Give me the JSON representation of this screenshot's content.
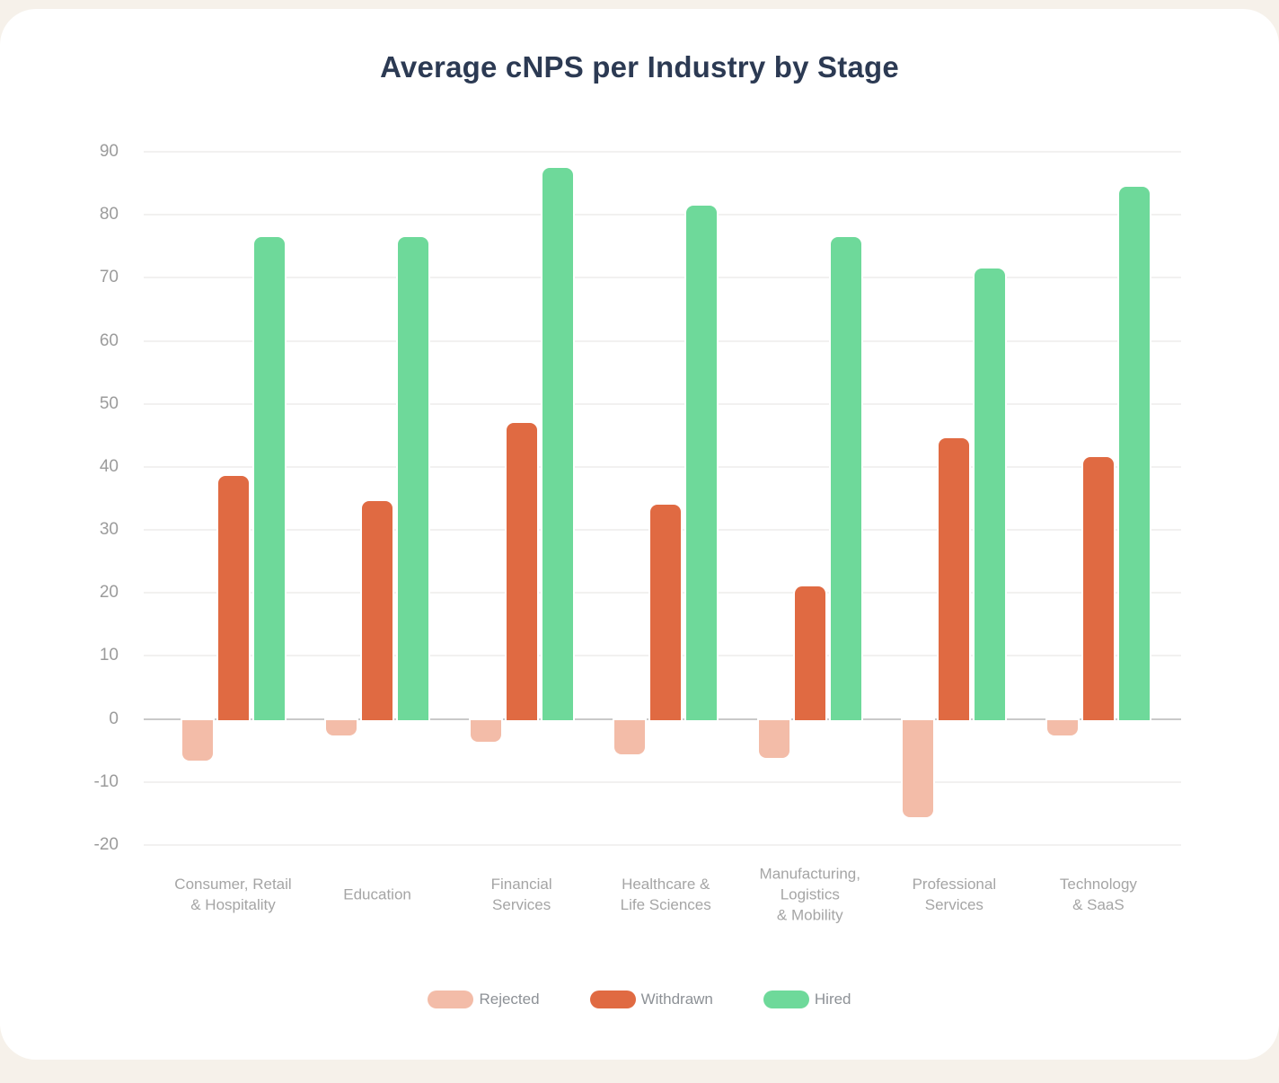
{
  "page": {
    "background": "#F6F1EA",
    "card_background": "#FFFFFF",
    "title_color": "#2C3A53",
    "axis_text_color": "#9B9B9B",
    "category_text_color": "#A5A5A5",
    "legend_text_color": "#8D9196",
    "zero_line_color": "#C9C9C9",
    "gridline_color": "#F2F1F0"
  },
  "chart_data": {
    "type": "bar",
    "title": "Average cNPS per Industry by Stage",
    "categories": [
      "Consumer, Retail\n& Hospitality",
      "Education",
      "Financial\nServices",
      "Healthcare &\nLife Sciences",
      "Manufacturing,\nLogistics\n& Mobility",
      "Professional\nServices",
      "Technology\n& SaaS"
    ],
    "series": [
      {
        "name": "Rejected",
        "color": "#F3BCA8",
        "values": [
          -6.5,
          -2.5,
          -3.5,
          -5.5,
          -6,
          -15.5,
          -2.5
        ]
      },
      {
        "name": "Withdrawn",
        "color": "#E06A42",
        "values": [
          38.5,
          34.5,
          47,
          34,
          21,
          44.5,
          41.5
        ]
      },
      {
        "name": "Hired",
        "color": "#6ED99A",
        "values": [
          76.5,
          76.5,
          87.5,
          81.5,
          76.5,
          71.5,
          84.5
        ]
      }
    ],
    "yticks": [
      90,
      80,
      70,
      60,
      50,
      40,
      30,
      20,
      10,
      0,
      -10,
      -20
    ],
    "ylim": [
      -20,
      90
    ],
    "xlabel": "",
    "ylabel": "",
    "grid": true,
    "legend_position": "bottom"
  }
}
